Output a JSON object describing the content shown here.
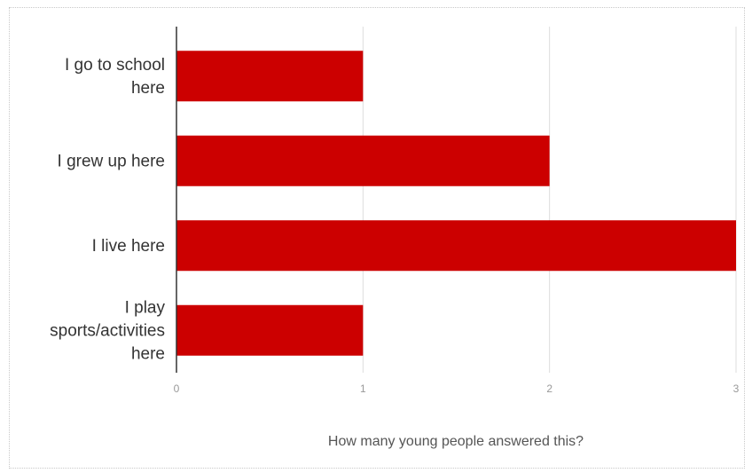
{
  "chart_data": {
    "type": "bar",
    "orientation": "horizontal",
    "categories": [
      [
        "I go to school",
        "here"
      ],
      [
        "I grew up here"
      ],
      [
        "I live here"
      ],
      [
        "I play",
        "sports/activities",
        "here"
      ]
    ],
    "values": [
      1,
      2,
      3,
      1
    ],
    "xlabel": "How many young people answered this?",
    "ylabel": "",
    "xlim": [
      0,
      3
    ],
    "xticks": [
      "0",
      "1",
      "2",
      "3"
    ],
    "grid": "vertical",
    "legend": "none",
    "bar_color": "#cc0000",
    "axis_color": "#333333",
    "grid_color": "#dddddd"
  }
}
